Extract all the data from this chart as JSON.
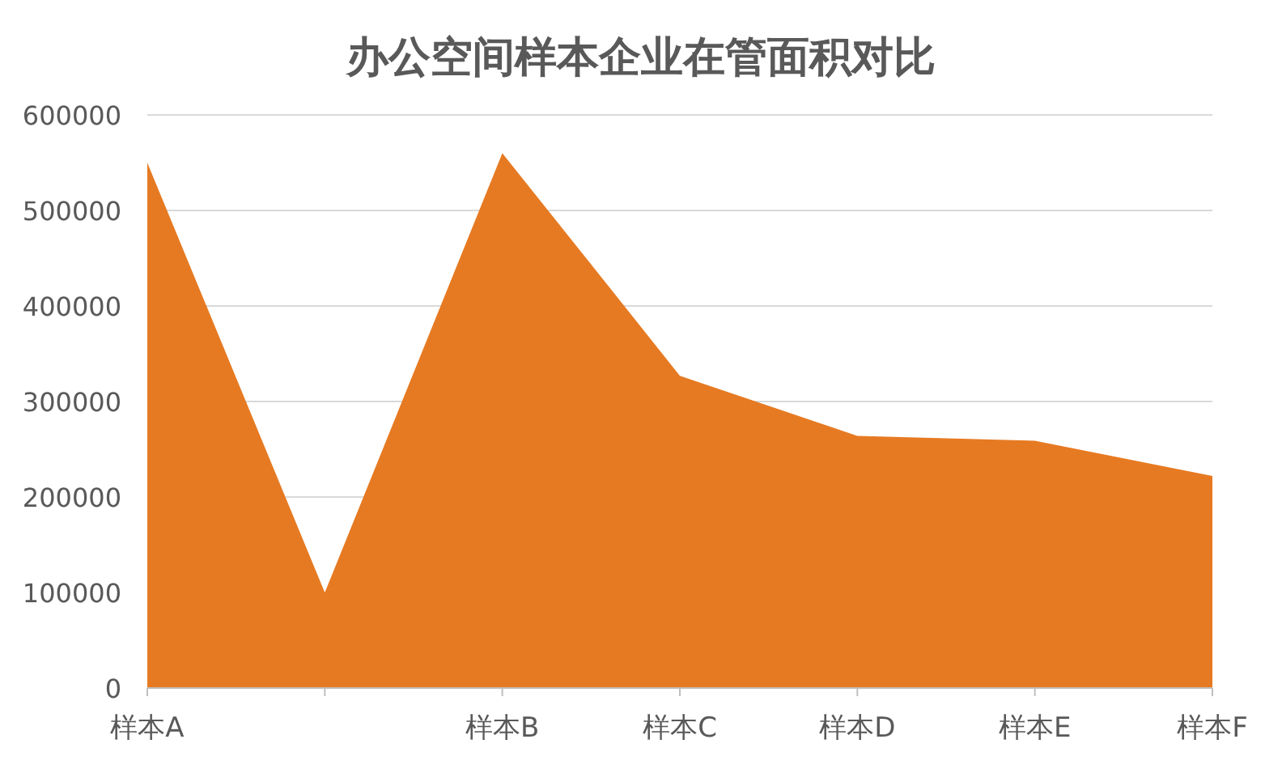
{
  "chart_data": {
    "type": "area",
    "title": "办公空间样本企业在管面积对比",
    "categories": [
      "样本A",
      null,
      "样本B",
      "样本C",
      "样本D",
      "样本E",
      "样本F"
    ],
    "values": [
      550000,
      100000,
      560000,
      327000,
      264000,
      259000,
      222000
    ],
    "color": "#e67a22",
    "ylim": [
      0,
      600000
    ],
    "yticks": [
      0,
      100000,
      200000,
      300000,
      400000,
      500000,
      600000
    ],
    "grid": "y"
  }
}
